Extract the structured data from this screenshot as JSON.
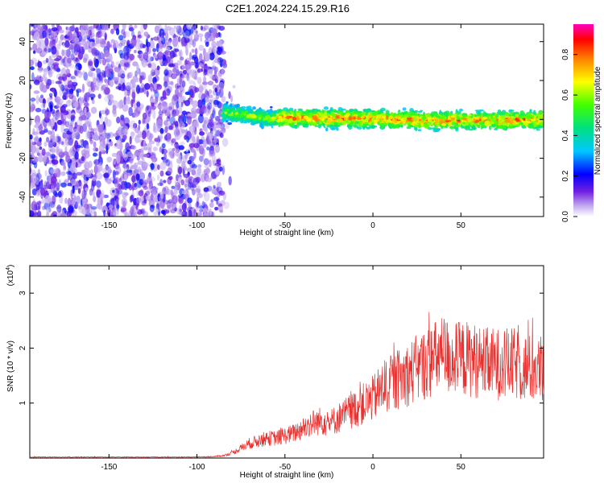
{
  "title": "C2E1.2024.224.15.29.R16",
  "colorbar": {
    "label": "Normalized spectral amplitude",
    "ticks": [
      "0.0",
      "0.2",
      "0.4",
      "0.6",
      "0.8"
    ],
    "tick_values": [
      0.0,
      0.2,
      0.4,
      0.6,
      0.8
    ],
    "range": [
      0,
      0.95
    ]
  },
  "chart_data": [
    {
      "type": "heatmap",
      "xlabel": "Height of straight line (km)",
      "ylabel": "Frequency (Hz)",
      "xlim": [
        -195,
        97
      ],
      "ylim": [
        -50,
        49
      ],
      "xticks": [
        "-150",
        "-100",
        "-50",
        "0",
        "50"
      ],
      "xtick_values": [
        -150,
        -100,
        -50,
        0,
        50
      ],
      "yticks": [
        "-40",
        "-20",
        "0",
        "20",
        "40"
      ],
      "ytick_values": [
        -40,
        -20,
        0,
        20,
        40
      ],
      "regions": [
        {
          "x_range": [
            -195,
            -85
          ],
          "y_range": [
            -50,
            49
          ],
          "pattern": "broadband noise",
          "amplitude": [
            0.05,
            0.25
          ]
        },
        {
          "x_range": [
            -85,
            97
          ],
          "y_range": [
            -8,
            6
          ],
          "pattern": "narrow band near 0 Hz",
          "amplitude": [
            0.3,
            0.95
          ]
        }
      ]
    },
    {
      "type": "line",
      "xlabel": "Height of straight line (km)",
      "ylabel": "SNR (10 * v/v)",
      "y_multiplier": "(x10",
      "y_multiplier_exp": "4",
      "y_multiplier_close": ")",
      "xlim": [
        -195,
        97
      ],
      "ylim": [
        0,
        3.5
      ],
      "xticks": [
        "-150",
        "-100",
        "-50",
        "0",
        "50"
      ],
      "xtick_values": [
        -150,
        -100,
        -50,
        0,
        50
      ],
      "yticks": [
        "1",
        "2",
        "3"
      ],
      "ytick_values": [
        1,
        2,
        3
      ],
      "color": "#e8302e",
      "series": [
        {
          "x": [
            -195,
            -180,
            -160,
            -140,
            -120,
            -100,
            -90,
            -85,
            -80,
            -75,
            -70,
            -65,
            -60,
            -55,
            -50,
            -45,
            -40,
            -35,
            -30,
            -25,
            -20,
            -15,
            -10,
            -5,
            0,
            5,
            10,
            15,
            20,
            25,
            30,
            35,
            40,
            45,
            50,
            55,
            60,
            65,
            70,
            75,
            80,
            85,
            90,
            95
          ],
          "y": [
            0.02,
            0.02,
            0.02,
            0.02,
            0.02,
            0.02,
            0.03,
            0.05,
            0.1,
            0.2,
            0.3,
            0.35,
            0.4,
            0.4,
            0.45,
            0.5,
            0.6,
            0.7,
            0.75,
            0.7,
            0.8,
            0.9,
            1.0,
            1.1,
            1.2,
            1.4,
            1.5,
            1.6,
            1.7,
            1.8,
            1.9,
            2.0,
            2.1,
            2.0,
            2.0,
            2.0,
            1.95,
            1.9,
            1.9,
            1.9,
            1.9,
            1.85,
            1.8,
            1.8
          ]
        }
      ]
    }
  ]
}
